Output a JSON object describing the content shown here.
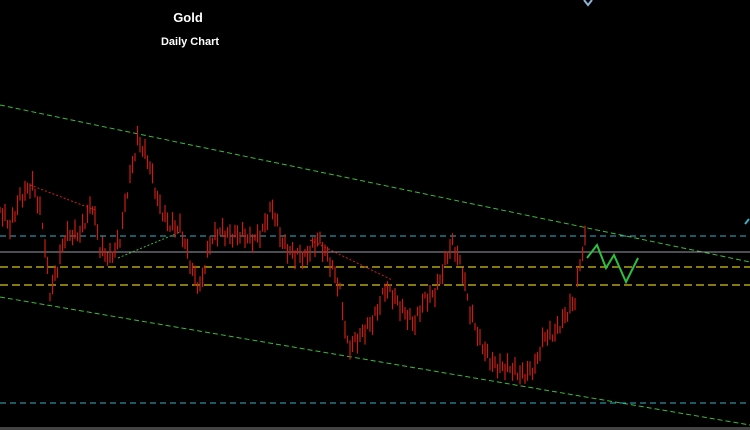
{
  "chart_data": {
    "type": "candlestick",
    "title": "Gold",
    "subtitle": "Daily Chart"
  }
}
